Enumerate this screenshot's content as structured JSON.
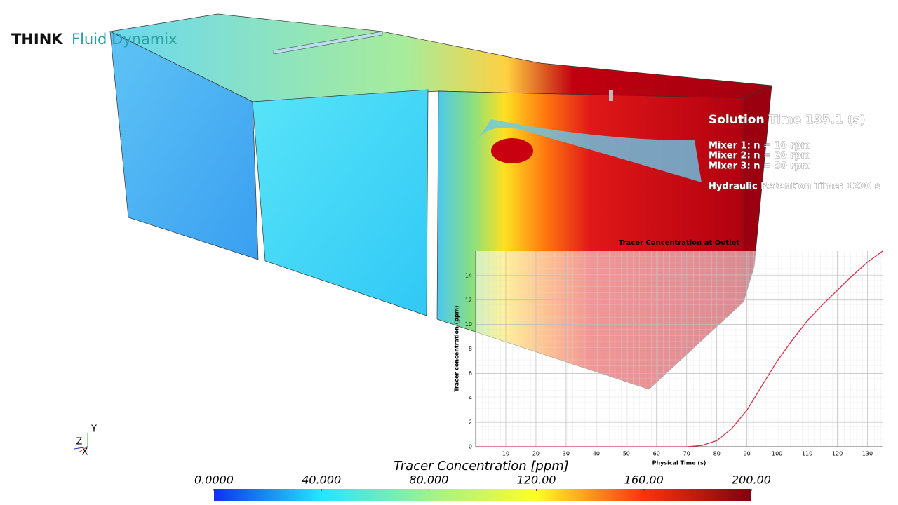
{
  "logo": {
    "brand": "THINK",
    "product": "Fluid Dynamix"
  },
  "annotations": {
    "solution_time": "Solution Time 135.1 (s)",
    "mixers": [
      "Mixer 1: n = 10 rpm",
      "Mixer 2: n = 20 rpm",
      "Mixer 3: n = 30 rpm"
    ],
    "retention": "Hydraulic Retention Time: 1200 s"
  },
  "chart_data": {
    "type": "line",
    "title": "Tracer Concentration at Outlet",
    "x_label": "Physical Time (s)",
    "y_label": "Tracer concentration (ppm)",
    "x": [
      0,
      10,
      20,
      30,
      40,
      50,
      60,
      70,
      75,
      80,
      85,
      90,
      95,
      100,
      105,
      110,
      115,
      120,
      125,
      130,
      135
    ],
    "values": [
      0,
      0,
      0,
      0,
      0,
      0,
      0,
      0,
      0.1,
      0.5,
      1.5,
      3.0,
      5.0,
      7.0,
      8.7,
      10.3,
      11.6,
      12.8,
      14.0,
      15.1,
      16.0
    ],
    "color": "#d9304a",
    "xlim": [
      0,
      135
    ],
    "ylim": [
      0,
      16
    ],
    "xticks": [
      10,
      20,
      30,
      40,
      50,
      60,
      70,
      80,
      90,
      100,
      110,
      120,
      130
    ],
    "yticks": [
      0,
      2,
      4,
      6,
      8,
      10,
      12,
      14
    ],
    "grid": true
  },
  "colorbar": {
    "title": "Tracer Concentration [ppm]",
    "range": [
      0,
      200
    ],
    "ticks": [
      {
        "value": 0,
        "label": "0.0000"
      },
      {
        "value": 40,
        "label": "40.000"
      },
      {
        "value": 80,
        "label": "80.000"
      },
      {
        "value": 120,
        "label": "120.00"
      },
      {
        "value": 160,
        "label": "160.00"
      },
      {
        "value": 200,
        "label": "200.00"
      }
    ]
  },
  "triad": {
    "y": "Y",
    "z": "Z",
    "x": "X"
  }
}
